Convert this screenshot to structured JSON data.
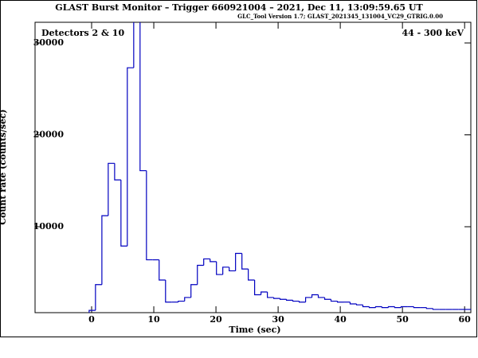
{
  "chart_data": {
    "type": "histogram",
    "title": "GLAST Burst Monitor  –  Trigger 660921004  –  2021, Dec 11, 13:09:59.65 UT",
    "subtitle": "GLC_Tool Version 1.7; GLAST_2021345_131004_VC29_GTRIG.0.00",
    "annotations": [
      "Detectors 2 & 10",
      "44 - 300 keV"
    ],
    "x_label": "Time (sec)",
    "y_label": "Count rate (counts/sec)",
    "color": "#0000c0",
    "bins": [
      -0.4,
      0.62,
      1.65,
      2.67,
      3.7,
      4.72,
      5.74,
      6.77,
      7.79,
      8.82,
      9.84,
      10.86,
      11.89,
      12.91,
      13.94,
      14.96,
      15.98,
      17.01,
      18.03,
      19.06,
      20.08,
      21.1,
      22.13,
      23.15,
      24.18,
      25.2,
      26.22,
      27.25,
      28.27,
      29.3,
      30.32,
      31.34,
      32.37,
      33.39,
      34.42,
      35.44,
      36.46,
      37.49,
      38.51,
      39.54,
      40.56,
      41.58,
      42.61,
      43.63,
      44.66,
      45.68,
      46.7,
      47.73,
      48.75,
      49.78,
      50.8,
      51.82,
      52.85,
      53.87,
      54.9,
      55.92,
      56.94,
      57.97,
      58.99,
      60.02,
      61.04
    ],
    "values": [
      900,
      3700,
      11200,
      16900,
      15100,
      7900,
      27300,
      33000,
      16100,
      6400,
      6400,
      4200,
      1800,
      1800,
      1900,
      2300,
      3700,
      5800,
      6500,
      6200,
      4800,
      5600,
      5200,
      7100,
      5400,
      4200,
      2600,
      2900,
      2300,
      2200,
      2100,
      2000,
      1900,
      1800,
      2300,
      2600,
      2300,
      2100,
      1900,
      1800,
      1800,
      1600,
      1500,
      1300,
      1200,
      1300,
      1200,
      1300,
      1200,
      1300,
      1300,
      1200,
      1200,
      1100,
      1000,
      1000,
      1000,
      1000,
      1000,
      1000
    ],
    "xlim": [
      -9.1,
      61
    ],
    "ylim": [
      650,
      32250
    ],
    "xticks": [
      0,
      10,
      20,
      30,
      40,
      50,
      60
    ],
    "yticks": [
      10000,
      20000,
      30000
    ]
  }
}
